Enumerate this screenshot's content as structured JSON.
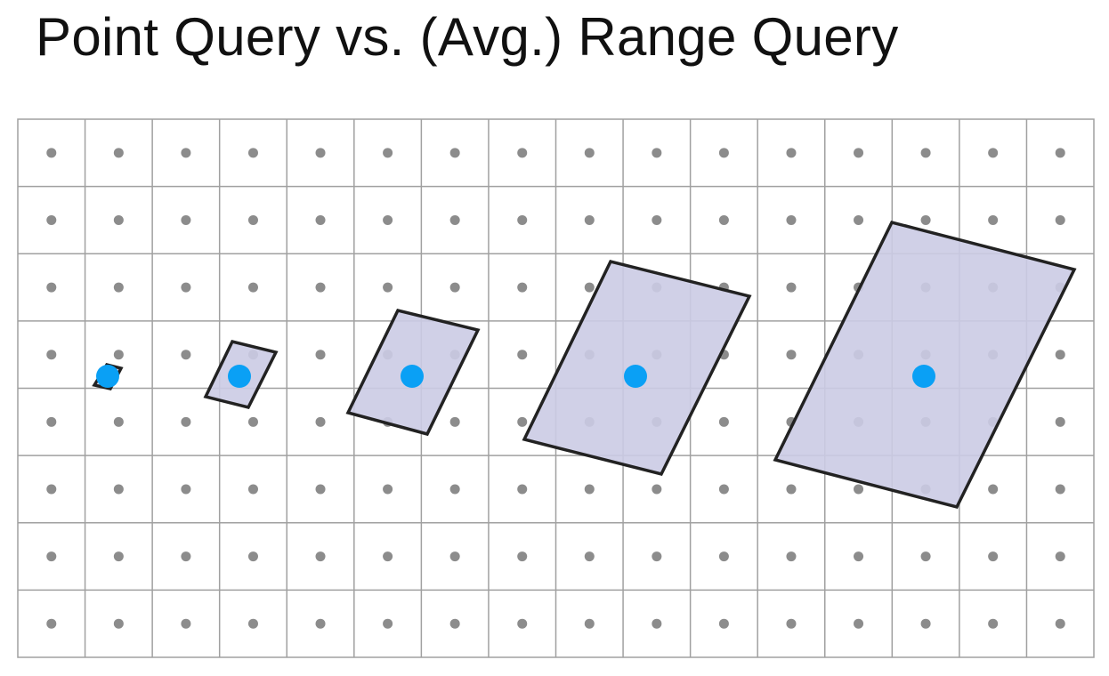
{
  "title": "Point Query vs. (Avg.) Range Query",
  "grid": {
    "columns": 16,
    "rows": 8
  },
  "colors": {
    "grid_line": "#a0a0a0",
    "sample_dot": "#8c8c8c",
    "footprint_fill": "#cbcbe4",
    "footprint_stroke": "#222222",
    "query_point": "#0aa0f5"
  },
  "queries": [
    {
      "name": "point-query",
      "footprint": "tiny"
    },
    {
      "name": "range-query-small",
      "footprint": "small"
    },
    {
      "name": "range-query-medium",
      "footprint": "medium"
    },
    {
      "name": "range-query-large",
      "footprint": "large"
    },
    {
      "name": "range-query-xlarge",
      "footprint": "x-large"
    }
  ]
}
